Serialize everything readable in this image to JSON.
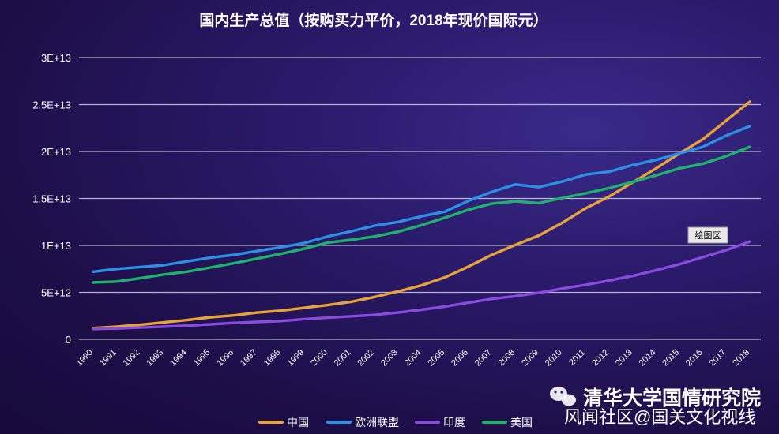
{
  "chart_data": {
    "type": "line",
    "title": "国内生产总值（按购买力平价，2018年现价国际元）",
    "xlabel": "",
    "ylabel": "",
    "x": [
      "1990",
      "1991",
      "1992",
      "1993",
      "1994",
      "1995",
      "1996",
      "1997",
      "1998",
      "1999",
      "2000",
      "2001",
      "2002",
      "2003",
      "2004",
      "2005",
      "2006",
      "2007",
      "2008",
      "2009",
      "2010",
      "2011",
      "2012",
      "2013",
      "2014",
      "2015",
      "2016",
      "2017",
      "2018"
    ],
    "ylim": [
      0,
      30000000000000
    ],
    "yticks": [
      0,
      5000000000000,
      10000000000000,
      15000000000000,
      20000000000000,
      25000000000000,
      30000000000000
    ],
    "ytick_labels": [
      "0",
      "5E+12",
      "1E+13",
      "1.5E+13",
      "2E+13",
      "2.5E+13",
      "3E+13"
    ],
    "grid": true,
    "legend_position": "bottom",
    "series": [
      {
        "name": "中国",
        "color": "#e8a23a",
        "values": [
          1200000000000.0,
          1350000000000.0,
          1550000000000.0,
          1800000000000.0,
          2050000000000.0,
          2350000000000.0,
          2550000000000.0,
          2850000000000.0,
          3050000000000.0,
          3350000000000.0,
          3650000000000.0,
          4000000000000.0,
          4500000000000.0,
          5100000000000.0,
          5750000000000.0,
          6600000000000.0,
          7750000000000.0,
          9000000000000.0,
          10050000000000.0,
          11050000000000.0,
          12400000000000.0,
          13950000000000.0,
          15200000000000.0,
          16700000000000.0,
          18200000000000.0,
          19800000000000.0,
          21300000000000.0,
          23300000000000.0,
          25300000000000.0
        ]
      },
      {
        "name": "欧洲联盟",
        "color": "#2c8fe6",
        "values": [
          7200000000000.0,
          7500000000000.0,
          7700000000000.0,
          7900000000000.0,
          8300000000000.0,
          8700000000000.0,
          9000000000000.0,
          9400000000000.0,
          9800000000000.0,
          10250000000000.0,
          10950000000000.0,
          11500000000000.0,
          12100000000000.0,
          12500000000000.0,
          13100000000000.0,
          13600000000000.0,
          14750000000000.0,
          15700000000000.0,
          16500000000000.0,
          16200000000000.0,
          16800000000000.0,
          17550000000000.0,
          17850000000000.0,
          18550000000000.0,
          19100000000000.0,
          19800000000000.0,
          20500000000000.0,
          21700000000000.0,
          22700000000000.0
        ]
      },
      {
        "name": "印度",
        "color": "#8a4ae0",
        "values": [
          1100000000000.0,
          1150000000000.0,
          1250000000000.0,
          1350000000000.0,
          1450000000000.0,
          1600000000000.0,
          1750000000000.0,
          1850000000000.0,
          1950000000000.0,
          2150000000000.0,
          2300000000000.0,
          2450000000000.0,
          2600000000000.0,
          2850000000000.0,
          3150000000000.0,
          3500000000000.0,
          3900000000000.0,
          4300000000000.0,
          4600000000000.0,
          4950000000000.0,
          5400000000000.0,
          5800000000000.0,
          6250000000000.0,
          6750000000000.0,
          7350000000000.0,
          8000000000000.0,
          8750000000000.0,
          9500000000000.0,
          10400000000000.0
        ]
      },
      {
        "name": "美国",
        "color": "#1db36a",
        "values": [
          6050000000000.0,
          6150000000000.0,
          6500000000000.0,
          6900000000000.0,
          7200000000000.0,
          7650000000000.0,
          8100000000000.0,
          8600000000000.0,
          9100000000000.0,
          9650000000000.0,
          10300000000000.0,
          10600000000000.0,
          10950000000000.0,
          11450000000000.0,
          12150000000000.0,
          12950000000000.0,
          13800000000000.0,
          14450000000000.0,
          14700000000000.0,
          14500000000000.0,
          15050000000000.0,
          15550000000000.0,
          16100000000000.0,
          16750000000000.0,
          17450000000000.0,
          18200000000000.0,
          18700000000000.0,
          19500000000000.0,
          20500000000000.0
        ]
      }
    ],
    "annotation": "绘图区"
  },
  "watermark": {
    "line1": "清华大学国情研究院",
    "line2": "风闻社区@国关文化视线"
  }
}
